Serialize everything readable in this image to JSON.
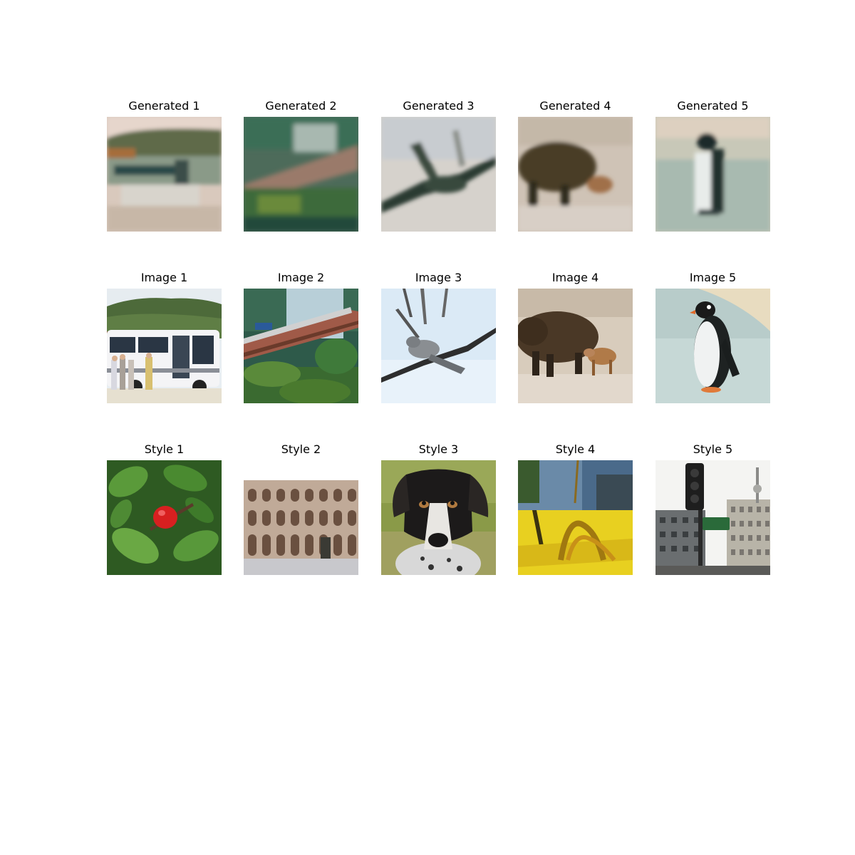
{
  "figure": {
    "rows": [
      {
        "cells": [
          {
            "title": "Generated 1",
            "image": "blurry-bus-landscape-image"
          },
          {
            "title": "Generated 2",
            "image": "blurry-bridge-forest-image"
          },
          {
            "title": "Generated 3",
            "image": "blurry-branch-bird-image"
          },
          {
            "title": "Generated 4",
            "image": "blurry-boar-image"
          },
          {
            "title": "Generated 5",
            "image": "blurry-penguin-image"
          }
        ]
      },
      {
        "cells": [
          {
            "title": "Image 1",
            "image": "bus-image"
          },
          {
            "title": "Image 2",
            "image": "bridge-image"
          },
          {
            "title": "Image 3",
            "image": "bird-on-branch-image"
          },
          {
            "title": "Image 4",
            "image": "boar-image"
          },
          {
            "title": "Image 5",
            "image": "penguin-image"
          }
        ]
      },
      {
        "cells": [
          {
            "title": "Style 1",
            "image": "red-berry-leaves-image"
          },
          {
            "title": "Style 2",
            "image": "arched-building-image"
          },
          {
            "title": "Style 3",
            "image": "dog-image"
          },
          {
            "title": "Style 4",
            "image": "yellow-object-image"
          },
          {
            "title": "Style 5",
            "image": "traffic-light-street-image"
          }
        ]
      }
    ]
  }
}
